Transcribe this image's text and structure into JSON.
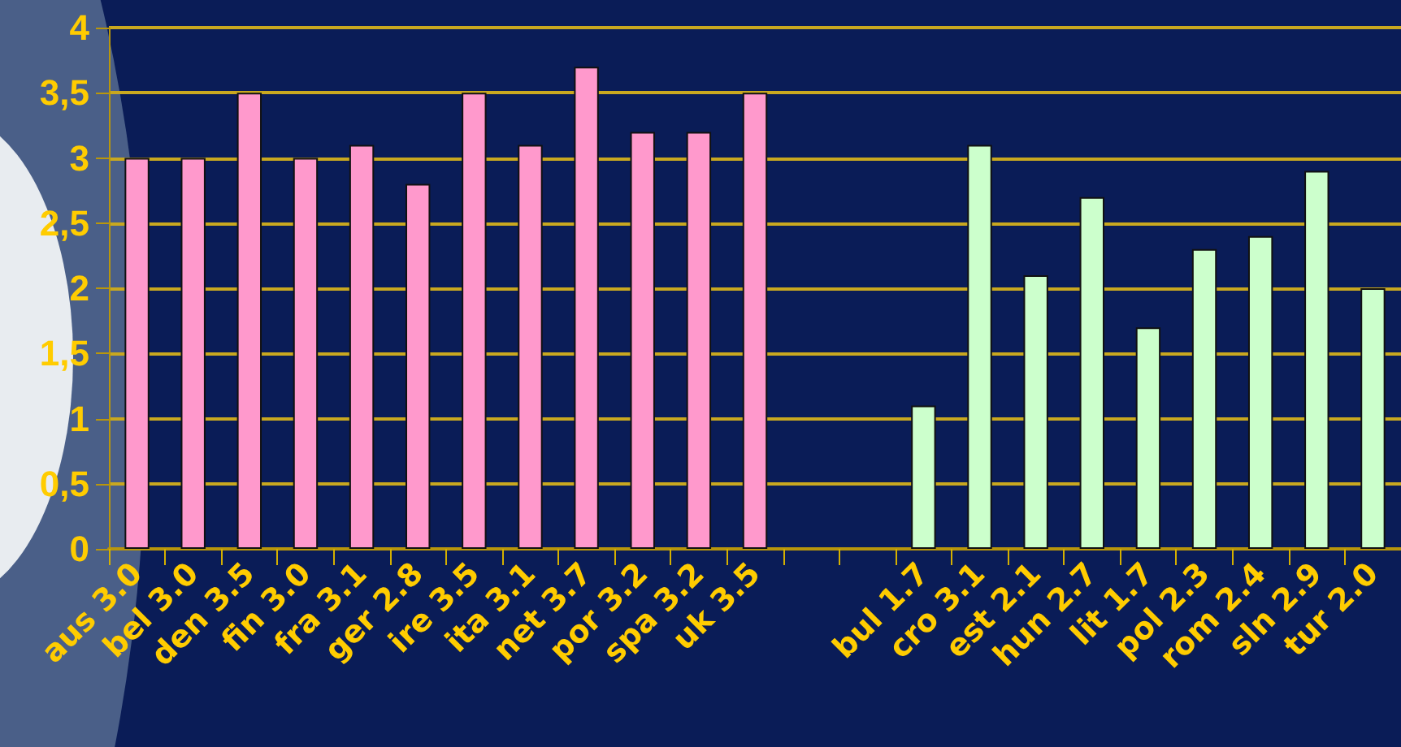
{
  "chart_data": {
    "type": "bar",
    "categories": [
      "aus 3.0",
      "bel 3.0",
      "den 3.5",
      "fin 3.0",
      "fra 3.1",
      "ger 2.8",
      "ire 3.5",
      "ita 3.1",
      "net 3.7",
      "por 3.2",
      "spa 3.2",
      "uk 3.5",
      null,
      null,
      "bul 1.7",
      "cro 3.1",
      "est 2.1",
      "hun 2.7",
      "lit 1.7",
      "pol 2.3",
      "rom 2.4",
      "sln 2.9",
      "tur 2.0"
    ],
    "values": [
      3.0,
      3.0,
      3.5,
      3.0,
      3.1,
      2.8,
      3.5,
      3.1,
      3.7,
      3.2,
      3.2,
      3.5,
      null,
      null,
      1.1,
      3.1,
      2.1,
      2.7,
      1.7,
      2.3,
      2.4,
      2.9,
      2.0
    ],
    "colors": [
      "#ff99cc",
      "#ff99cc",
      "#ff99cc",
      "#ff99cc",
      "#ff99cc",
      "#ff99cc",
      "#ff99cc",
      "#ff99cc",
      "#ff99cc",
      "#ff99cc",
      "#ff99cc",
      "#ff99cc",
      null,
      null,
      "#ccffcc",
      "#ccffcc",
      "#ccffcc",
      "#ccffcc",
      "#ccffcc",
      "#ccffcc",
      "#ccffcc",
      "#ccffcc",
      "#ccffcc"
    ],
    "ylim": [
      0,
      4
    ],
    "yticks": [
      0,
      {
        "value": 0.5,
        "label": "0,5"
      },
      1,
      {
        "value": 1.5,
        "label": "1,5"
      },
      2,
      {
        "value": 2.5,
        "label": "2,5"
      },
      3,
      {
        "value": 3.5,
        "label": "3,5"
      },
      4
    ],
    "grid": "y"
  }
}
